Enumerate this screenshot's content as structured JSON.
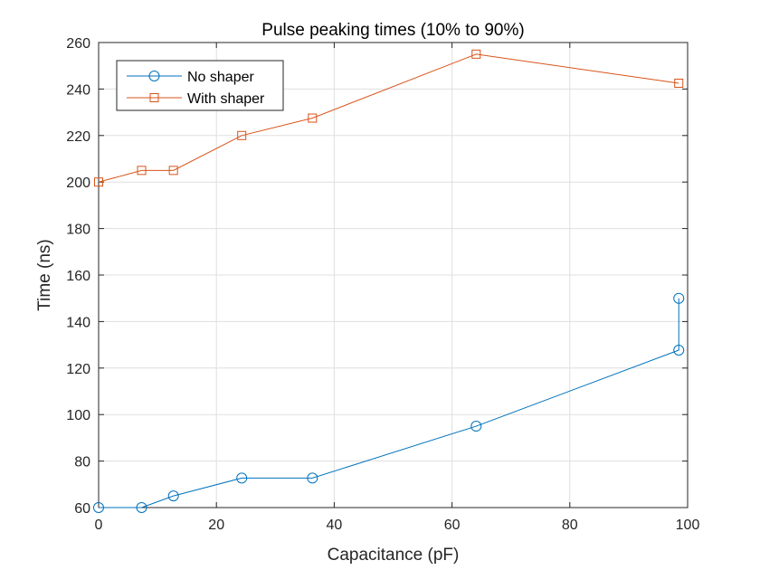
{
  "chart_data": {
    "type": "line",
    "title": "Pulse peaking times (10% to 90%)",
    "xlabel": "Capacitance (pF)",
    "ylabel": "Time (ns)",
    "xlim": [
      0,
      100
    ],
    "ylim": [
      60,
      260
    ],
    "xticks": [
      0,
      20,
      40,
      60,
      80,
      100
    ],
    "yticks": [
      60,
      80,
      100,
      120,
      140,
      160,
      180,
      200,
      220,
      240,
      260
    ],
    "grid": true,
    "legend_position": "top-left",
    "series": [
      {
        "name": "No shaper",
        "color": "#0072BD",
        "marker": "circle",
        "x": [
          0,
          7.3,
          12.7,
          24.3,
          36.3,
          64.1,
          98.5,
          98.5
        ],
        "y": [
          60,
          60,
          65,
          72.7,
          72.7,
          95,
          127.7,
          150
        ]
      },
      {
        "name": "With shaper",
        "color": "#D95319",
        "marker": "square",
        "x": [
          0,
          7.3,
          12.7,
          24.3,
          36.3,
          64.1,
          98.5
        ],
        "y": [
          200,
          205,
          205,
          220,
          227.5,
          255,
          242.5
        ]
      }
    ]
  }
}
